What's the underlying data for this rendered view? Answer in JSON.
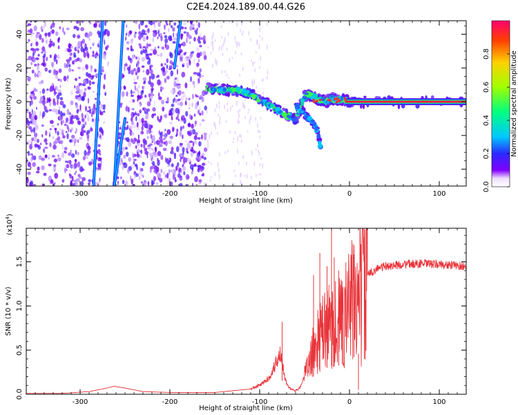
{
  "title": "C2E4.2024.189.00.44.G26",
  "colors": {
    "snr_line": "#e8343a",
    "ridge_core": "#ff1f3a"
  },
  "chart_data": [
    {
      "type": "heatmap",
      "title": "",
      "xlabel": "Height of straight line (km)",
      "ylabel": "Frequency (Hz)",
      "xlim": [
        -360,
        130
      ],
      "ylim": [
        -50,
        48
      ],
      "xticks": [
        -300,
        -200,
        -100,
        0,
        100
      ],
      "xtick_labels": [
        "-300",
        "-200",
        "-100",
        "0",
        "100"
      ],
      "yticks": [
        -40,
        -20,
        0,
        20,
        40
      ],
      "ytick_labels": [
        "-40",
        "-20",
        "0",
        "20",
        "40"
      ],
      "colorbar": {
        "label": "Normalized spectral amplitude",
        "range": [
          0,
          1
        ],
        "ticks": [
          0,
          0.2,
          0.4,
          0.6,
          0.8
        ],
        "tick_labels": [
          "0.0",
          "0.2",
          "0.4",
          "0.6",
          "0.8"
        ]
      },
      "noise_region_x": [
        -360,
        -160
      ],
      "streaks": [
        {
          "x": [
            -285,
            -275
          ],
          "y": [
            -50,
            48
          ]
        },
        {
          "x": [
            -262,
            -252
          ],
          "y": [
            -50,
            48
          ]
        },
        {
          "x": [
            -262,
            -250
          ],
          "y": [
            -50,
            -10
          ]
        },
        {
          "x": [
            -195,
            -188
          ],
          "y": [
            20,
            48
          ]
        }
      ],
      "signal_trace": {
        "x": [
          -160,
          -150,
          -140,
          -130,
          -120,
          -110,
          -100,
          -90,
          -80,
          -70,
          -60,
          -50,
          -45,
          -40,
          -35,
          -30,
          -25,
          -20,
          -15,
          -10,
          -5,
          0,
          20,
          60,
          130
        ],
        "y": [
          8,
          7.5,
          7,
          7,
          6,
          5,
          1,
          -2,
          -5,
          -8,
          -11,
          3,
          4,
          3,
          1,
          1,
          0,
          2,
          1,
          1,
          1,
          0,
          0,
          0,
          0
        ]
      },
      "branch_trace": {
        "x": [
          -60,
          -55,
          -50,
          -45,
          -40,
          -35,
          -32
        ],
        "y": [
          -2,
          -5,
          -7,
          -10,
          -13,
          -18,
          -28
        ]
      }
    },
    {
      "type": "line",
      "title": "",
      "xlabel": "Height of straight line (km)",
      "ylabel": "SNR (10 * v/v)",
      "scale_label": "(x10",
      "scale_exp": "4",
      "scale_close": ")",
      "xlim": [
        -360,
        130
      ],
      "ylim": [
        0,
        1.88
      ],
      "xticks": [
        -300,
        -200,
        -100,
        0,
        100
      ],
      "xtick_labels": [
        "-300",
        "-200",
        "-100",
        "0",
        "100"
      ],
      "yticks": [
        0,
        0.5,
        1,
        1.5
      ],
      "ytick_labels": [
        "0.0",
        "0.5",
        "1.0",
        "1.5"
      ],
      "envelope": {
        "x": [
          -360,
          -320,
          -290,
          -275,
          -262,
          -250,
          -230,
          -200,
          -150,
          -130,
          -110,
          -100,
          -90,
          -85,
          -80,
          -78,
          -75,
          -72,
          -68,
          -64,
          -60,
          -55,
          -50,
          -45,
          -40,
          -35,
          -30,
          -25,
          -20,
          -15,
          -10,
          -5,
          0,
          5,
          10,
          15,
          20,
          30,
          40,
          60,
          80,
          100,
          130
        ],
        "y": [
          0.01,
          0.01,
          0.03,
          0.06,
          0.09,
          0.07,
          0.03,
          0.02,
          0.02,
          0.04,
          0.06,
          0.1,
          0.18,
          0.28,
          0.4,
          0.5,
          0.38,
          0.2,
          0.08,
          0.05,
          0.04,
          0.08,
          0.2,
          0.35,
          0.5,
          0.6,
          0.7,
          0.75,
          0.8,
          0.8,
          0.82,
          0.9,
          1.0,
          1.05,
          1.15,
          1.25,
          1.35,
          1.42,
          1.45,
          1.47,
          1.48,
          1.47,
          1.45
        ]
      },
      "spikes": [
        {
          "x": -75,
          "y": 0.82
        },
        {
          "x": -40,
          "y": 1.35
        },
        {
          "x": -33,
          "y": 1.6
        },
        {
          "x": -25,
          "y": 1.45
        },
        {
          "x": -20,
          "y": 1.88
        },
        {
          "x": -17,
          "y": 1.55
        },
        {
          "x": -12,
          "y": 1.4
        },
        {
          "x": -8,
          "y": 1.1
        },
        {
          "x": 5,
          "y": 1.3
        },
        {
          "x": 10,
          "y": 0.05
        }
      ]
    }
  ]
}
